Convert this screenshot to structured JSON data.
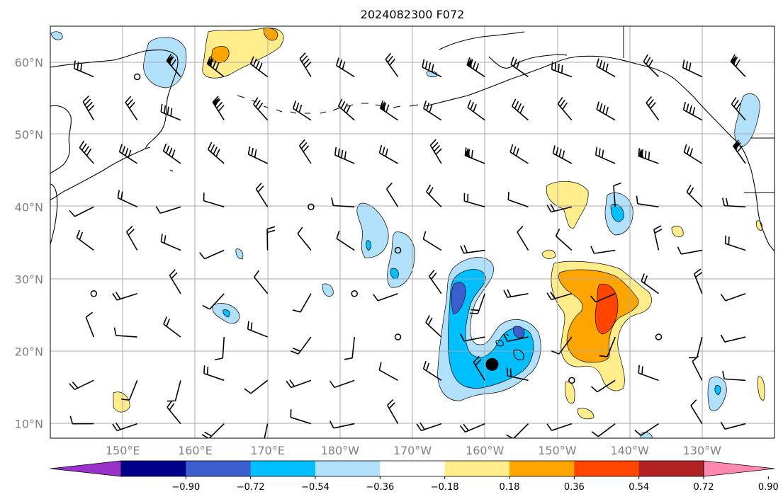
{
  "map": {
    "title": "2024082300 F072",
    "projection": "PlateCarree",
    "extent": {
      "lon_min": 140,
      "lon_max": 240,
      "lat_min": 8,
      "lat_max": 65
    },
    "lat_labels": [
      "10°N",
      "20°N",
      "30°N",
      "40°N",
      "50°N",
      "60°N"
    ],
    "lat_values": [
      10,
      20,
      30,
      40,
      50,
      60
    ],
    "lon_labels": [
      "150°E",
      "160°E",
      "170°E",
      "180°W",
      "170°W",
      "160°W",
      "150°W",
      "140°W",
      "130°W"
    ],
    "lon_values": [
      150,
      160,
      170,
      180,
      190,
      200,
      210,
      220,
      230
    ],
    "marker": {
      "label": "storm-center",
      "lon": 201,
      "lat": 18.2
    }
  },
  "colorbar": {
    "tick_labels": [
      "−0.90",
      "−0.72",
      "−0.54",
      "−0.36",
      "−0.18",
      "0.18",
      "0.36",
      "0.54",
      "0.72",
      "0.90"
    ],
    "levels": [
      -0.9,
      -0.72,
      -0.54,
      -0.36,
      -0.18,
      0.18,
      0.36,
      0.54,
      0.72,
      0.9
    ],
    "colors": [
      "#9932cc",
      "#00008b",
      "#3a5fcd",
      "#00bfff",
      "#b0e0fa",
      "#ffffff",
      "#ffec8b",
      "#ffa500",
      "#ff4500",
      "#b22222",
      "#ff88b0"
    ]
  }
}
